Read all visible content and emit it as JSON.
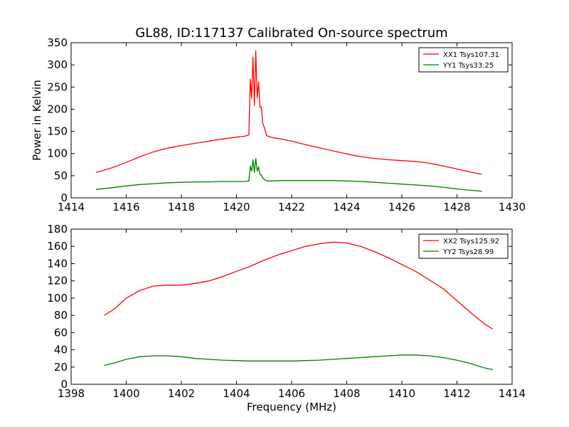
{
  "chart_data": [
    {
      "type": "line",
      "title": "GL88, ID:117137 Calibrated On-source spectrum",
      "xlabel": "",
      "ylabel": "Power in Kelvin",
      "xlim": [
        1414,
        1430
      ],
      "ylim": [
        0,
        350
      ],
      "xticks": [
        "1414",
        "1416",
        "1418",
        "1420",
        "1422",
        "1424",
        "1426",
        "1428",
        "1430"
      ],
      "yticks": [
        "0",
        "50",
        "100",
        "150",
        "200",
        "250",
        "300",
        "350"
      ],
      "legend_position": "top-right",
      "series": [
        {
          "name": "XX1 Tsys107.31",
          "color": "#ff0000",
          "x": [
            1414.9,
            1415.5,
            1416.0,
            1416.5,
            1417.0,
            1417.5,
            1418.0,
            1418.5,
            1419.0,
            1419.5,
            1420.0,
            1420.3,
            1420.45,
            1420.5,
            1420.55,
            1420.6,
            1420.65,
            1420.7,
            1420.75,
            1420.8,
            1420.85,
            1420.9,
            1420.95,
            1421.0,
            1421.1,
            1421.3,
            1421.6,
            1422.0,
            1422.5,
            1423.0,
            1423.5,
            1424.0,
            1424.5,
            1425.0,
            1425.5,
            1426.0,
            1426.5,
            1427.0,
            1427.5,
            1428.0,
            1428.5,
            1428.9
          ],
          "y": [
            57,
            68,
            80,
            93,
            104,
            112,
            118,
            123,
            128,
            133,
            137,
            139,
            142,
            268,
            225,
            318,
            208,
            332,
            225,
            262,
            205,
            205,
            170,
            160,
            140,
            136,
            133,
            128,
            120,
            113,
            106,
            99,
            93,
            89,
            86,
            84,
            82,
            78,
            72,
            65,
            58,
            53
          ]
        },
        {
          "name": "YY1 Tsys33.25",
          "color": "#008000",
          "x": [
            1414.9,
            1415.5,
            1416.0,
            1416.5,
            1417.0,
            1417.5,
            1418.0,
            1418.5,
            1419.0,
            1419.5,
            1420.0,
            1420.3,
            1420.45,
            1420.5,
            1420.55,
            1420.6,
            1420.65,
            1420.7,
            1420.75,
            1420.8,
            1420.85,
            1420.9,
            1420.95,
            1421.0,
            1421.1,
            1421.3,
            1421.6,
            1422.0,
            1422.5,
            1423.0,
            1423.5,
            1424.0,
            1424.5,
            1425.0,
            1425.5,
            1426.0,
            1426.5,
            1427.0,
            1427.5,
            1428.0,
            1428.5,
            1428.9
          ],
          "y": [
            19,
            23,
            27,
            30,
            32,
            34,
            35,
            36,
            36,
            37,
            37,
            37,
            38,
            72,
            60,
            86,
            57,
            89,
            60,
            70,
            52,
            52,
            45,
            42,
            38,
            38,
            39,
            39,
            39,
            39,
            39,
            38,
            37,
            35,
            33,
            31,
            29,
            27,
            24,
            20,
            17,
            15
          ]
        }
      ]
    },
    {
      "type": "line",
      "title": "",
      "xlabel": "Frequency (MHz)",
      "ylabel": "",
      "xlim": [
        1398,
        1414
      ],
      "ylim": [
        0,
        180
      ],
      "xticks": [
        "1398",
        "1400",
        "1402",
        "1404",
        "1406",
        "1408",
        "1410",
        "1412",
        "1414"
      ],
      "yticks": [
        "0",
        "20",
        "40",
        "60",
        "80",
        "100",
        "120",
        "140",
        "160",
        "180"
      ],
      "legend_position": "top-right",
      "series": [
        {
          "name": "XX2 Tsys125.92",
          "color": "#ff0000",
          "x": [
            1399.2,
            1399.6,
            1400.0,
            1400.5,
            1401.0,
            1401.5,
            1402.0,
            1402.5,
            1403.0,
            1403.5,
            1404.0,
            1404.5,
            1405.0,
            1405.5,
            1406.0,
            1406.5,
            1407.0,
            1407.5,
            1408.0,
            1408.5,
            1409.0,
            1409.5,
            1410.0,
            1410.5,
            1411.0,
            1411.5,
            1412.0,
            1412.5,
            1413.0,
            1413.3
          ],
          "y": [
            80,
            88,
            100,
            109,
            114,
            115,
            115,
            117,
            120,
            125,
            131,
            137,
            144,
            150,
            155,
            160,
            163,
            165,
            164,
            160,
            154,
            147,
            139,
            131,
            121,
            111,
            97,
            83,
            70,
            64
          ]
        },
        {
          "name": "YY2 Tsys28.99",
          "color": "#008000",
          "x": [
            1399.2,
            1399.6,
            1400.0,
            1400.5,
            1401.0,
            1401.5,
            1402.0,
            1402.5,
            1403.0,
            1403.5,
            1404.0,
            1404.5,
            1405.0,
            1405.5,
            1406.0,
            1406.5,
            1407.0,
            1407.5,
            1408.0,
            1408.5,
            1409.0,
            1409.5,
            1410.0,
            1410.5,
            1411.0,
            1411.5,
            1412.0,
            1412.5,
            1413.0,
            1413.3
          ],
          "y": [
            22,
            25,
            29,
            32,
            33,
            33,
            32,
            30,
            29,
            28,
            27.5,
            27,
            27,
            27,
            27,
            27.5,
            28,
            29,
            30,
            31,
            32,
            33,
            34,
            34,
            33,
            31,
            28,
            24,
            19,
            17
          ]
        }
      ]
    }
  ]
}
